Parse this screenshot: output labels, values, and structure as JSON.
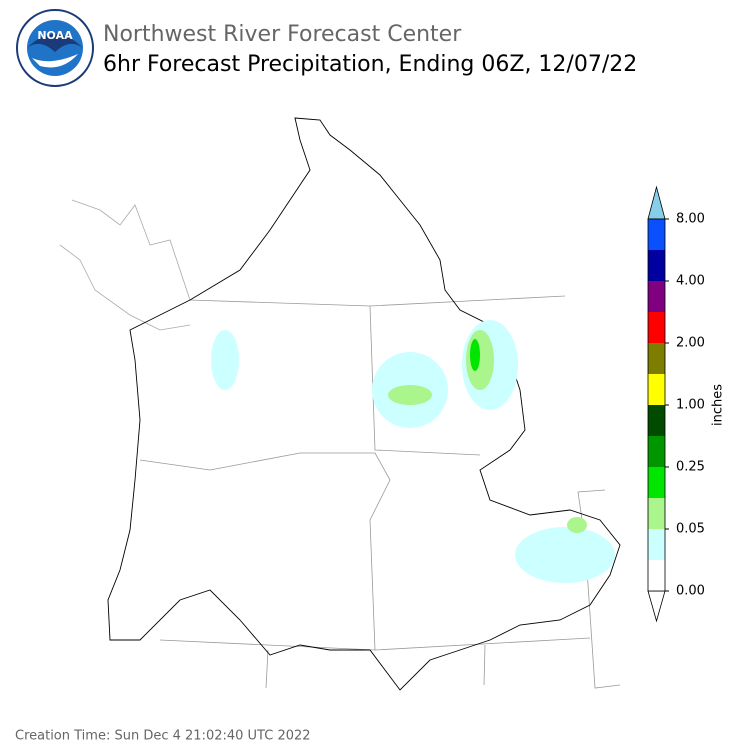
{
  "header": {
    "logo_text": "NOAA",
    "organization": "Northwest River Forecast Center",
    "title": "6hr Forecast Precipitation, Ending 06Z, 12/07/22"
  },
  "colorbar": {
    "label": "inches",
    "colors": [
      "#ffffff",
      "#ccffff",
      "#aaf58c",
      "#00e600",
      "#009600",
      "#004b00",
      "#ffff00",
      "#7d7d00",
      "#ff0000",
      "#800080",
      "#0000a0",
      "#0a50ff"
    ],
    "over_color": "#87ceeb",
    "under_color": "#ffffff",
    "ticks": [
      {
        "value": 0,
        "label": "0.00"
      },
      {
        "value": 0.05,
        "label": "0.05"
      },
      {
        "value": 0.25,
        "label": "0.25"
      },
      {
        "value": 1,
        "label": "1.00"
      },
      {
        "value": 2,
        "label": "2.00"
      },
      {
        "value": 4,
        "label": "4.00"
      },
      {
        "value": 8,
        "label": "8.00"
      }
    ]
  },
  "footer": {
    "creation_time": "Creation Time: Sun Dec 4 21:02:40 UTC 2022"
  }
}
